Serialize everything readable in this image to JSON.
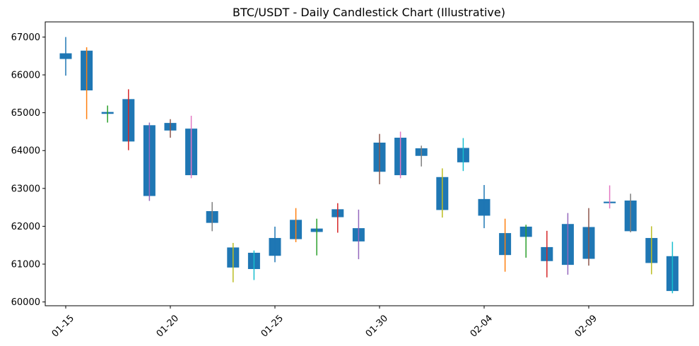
{
  "chart_data": {
    "type": "candlestick",
    "title": "BTC/USDT - Daily Candlestick Chart (Illustrative)",
    "xlabel": "",
    "ylabel": "",
    "ylim": [
      59900,
      67400
    ],
    "yticks": [
      60000,
      61000,
      62000,
      63000,
      64000,
      65000,
      66000,
      67000
    ],
    "x_start_label_index": 0,
    "xtick_labels": [
      {
        "index": 0,
        "label": "01-15"
      },
      {
        "index": 5,
        "label": "01-20"
      },
      {
        "index": 10,
        "label": "01-25"
      },
      {
        "index": 15,
        "label": "01-30"
      },
      {
        "index": 20,
        "label": "02-04"
      },
      {
        "index": 25,
        "label": "02-09"
      }
    ],
    "wick_colors": [
      "#1f77b4",
      "#ff7f0e",
      "#2ca02c",
      "#d62728",
      "#9467bd",
      "#8c564b",
      "#e377c2",
      "#7f7f7f",
      "#bcbd22",
      "#17becf"
    ],
    "body_color": "#1f77b4",
    "candles": [
      {
        "date": "01-15",
        "low": 65980,
        "high": 67000,
        "body_low": 66420,
        "body_high": 66570
      },
      {
        "date": "01-16",
        "low": 64830,
        "high": 66730,
        "body_low": 65590,
        "body_high": 66640
      },
      {
        "date": "01-17",
        "low": 64740,
        "high": 65190,
        "body_low": 64970,
        "body_high": 65020
      },
      {
        "date": "01-18",
        "low": 64010,
        "high": 65620,
        "body_low": 64240,
        "body_high": 65360
      },
      {
        "date": "01-19",
        "low": 62670,
        "high": 64740,
        "body_low": 62800,
        "body_high": 64670
      },
      {
        "date": "01-20",
        "low": 64340,
        "high": 64830,
        "body_low": 64530,
        "body_high": 64730
      },
      {
        "date": "01-21",
        "low": 63270,
        "high": 64920,
        "body_low": 63350,
        "body_high": 64580
      },
      {
        "date": "01-22",
        "low": 61870,
        "high": 62640,
        "body_low": 62090,
        "body_high": 62400
      },
      {
        "date": "01-23",
        "low": 60520,
        "high": 61560,
        "body_low": 60910,
        "body_high": 61440
      },
      {
        "date": "01-24",
        "low": 60580,
        "high": 61360,
        "body_low": 60870,
        "body_high": 61300
      },
      {
        "date": "01-25",
        "low": 61050,
        "high": 61990,
        "body_low": 61220,
        "body_high": 61690
      },
      {
        "date": "01-26",
        "low": 61580,
        "high": 62480,
        "body_low": 61660,
        "body_high": 62170
      },
      {
        "date": "01-27",
        "low": 61230,
        "high": 62200,
        "body_low": 61850,
        "body_high": 61940
      },
      {
        "date": "01-28",
        "low": 61830,
        "high": 62610,
        "body_low": 62240,
        "body_high": 62450
      },
      {
        "date": "01-29",
        "low": 61130,
        "high": 62440,
        "body_low": 61600,
        "body_high": 61950
      },
      {
        "date": "01-30",
        "low": 63110,
        "high": 64440,
        "body_low": 63440,
        "body_high": 64210
      },
      {
        "date": "01-31",
        "low": 63270,
        "high": 64500,
        "body_low": 63350,
        "body_high": 64340
      },
      {
        "date": "02-01",
        "low": 63580,
        "high": 64130,
        "body_low": 63860,
        "body_high": 64060
      },
      {
        "date": "02-02",
        "low": 62230,
        "high": 63530,
        "body_low": 62430,
        "body_high": 63300
      },
      {
        "date": "02-03",
        "low": 63460,
        "high": 64330,
        "body_low": 63690,
        "body_high": 64070
      },
      {
        "date": "02-04",
        "low": 61950,
        "high": 63090,
        "body_low": 62280,
        "body_high": 62720
      },
      {
        "date": "02-05",
        "low": 60800,
        "high": 62200,
        "body_low": 61240,
        "body_high": 61820
      },
      {
        "date": "02-06",
        "low": 61170,
        "high": 62040,
        "body_low": 61720,
        "body_high": 61990
      },
      {
        "date": "02-07",
        "low": 60650,
        "high": 61880,
        "body_low": 61080,
        "body_high": 61450
      },
      {
        "date": "02-08",
        "low": 60720,
        "high": 62350,
        "body_low": 60980,
        "body_high": 62060
      },
      {
        "date": "02-09",
        "low": 60960,
        "high": 62480,
        "body_low": 61140,
        "body_high": 61980
      },
      {
        "date": "02-10",
        "low": 62470,
        "high": 63080,
        "body_low": 62610,
        "body_high": 62650
      },
      {
        "date": "02-11",
        "low": 61840,
        "high": 62860,
        "body_low": 61870,
        "body_high": 62680
      },
      {
        "date": "02-12",
        "low": 60730,
        "high": 62000,
        "body_low": 61030,
        "body_high": 61690
      },
      {
        "date": "02-13",
        "low": 60230,
        "high": 61590,
        "body_low": 60290,
        "body_high": 61210
      }
    ]
  }
}
